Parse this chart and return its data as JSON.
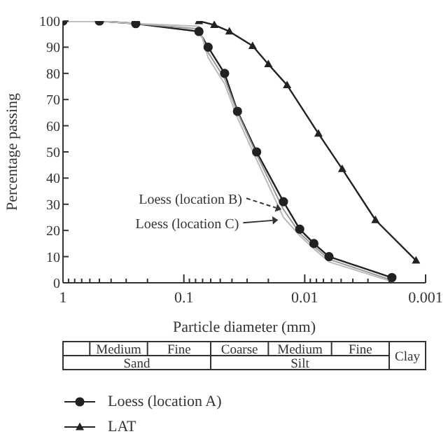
{
  "chart_data": {
    "type": "line",
    "xlabel": "Particle diameter (mm)",
    "ylabel": "Percentage passing",
    "log": "x",
    "xlim": [
      1,
      0.001
    ],
    "ylim": [
      0,
      100
    ],
    "xticks": [
      1,
      {
        "value": 0.9,
        "label": null
      },
      {
        "value": 0.8,
        "label": null
      },
      {
        "value": 0.7,
        "label": null
      },
      {
        "value": 0.6,
        "label": null
      },
      {
        "value": 0.5,
        "label": null
      },
      {
        "value": 0.4,
        "label": null
      },
      {
        "value": 0.3,
        "label": null
      },
      {
        "value": 0.2,
        "label": null
      },
      0.1,
      {
        "value": 0.09,
        "label": null
      },
      {
        "value": 0.08,
        "label": null
      },
      {
        "value": 0.07,
        "label": null
      },
      {
        "value": 0.06,
        "label": null
      },
      {
        "value": 0.05,
        "label": null
      },
      {
        "value": 0.04,
        "label": null
      },
      {
        "value": 0.03,
        "label": null
      },
      {
        "value": 0.02,
        "label": null
      },
      0.01,
      {
        "value": 0.009,
        "label": null
      },
      {
        "value": 0.008,
        "label": null
      },
      {
        "value": 0.007,
        "label": null
      },
      {
        "value": 0.006,
        "label": null
      },
      {
        "value": 0.005,
        "label": null
      },
      {
        "value": 0.004,
        "label": null
      },
      {
        "value": 0.003,
        "label": null
      },
      {
        "value": 0.002,
        "label": null
      },
      0.001
    ],
    "yticks": [
      0,
      10,
      20,
      30,
      40,
      50,
      60,
      70,
      80,
      90,
      100
    ],
    "legend": "bottom",
    "line_style": "solid",
    "series": [
      {
        "name": "Loess (location A)",
        "color": "#222222",
        "marker": "circle",
        "x": [
          1,
          0.5,
          0.25,
          0.075,
          0.063,
          0.046,
          0.036,
          0.025,
          0.015,
          0.011,
          0.0084,
          0.0063,
          0.0019
        ],
        "values": [
          100,
          100,
          99,
          96,
          90,
          80,
          65.5,
          50,
          31,
          20.5,
          15,
          10,
          2
        ]
      },
      {
        "color": "#999999",
        "marker": "none",
        "x": [
          1,
          0.5,
          0.25,
          0.075,
          0.063,
          0.046,
          0.036,
          0.025,
          0.015,
          0.011,
          0.0084,
          0.0063,
          0.0019
        ],
        "values": [
          100,
          100,
          99,
          97,
          88,
          78,
          65,
          49,
          28,
          19,
          14,
          9,
          1
        ]
      },
      {
        "color": "#bbbbbb",
        "marker": "none",
        "x": [
          1,
          0.5,
          0.25,
          0.075,
          0.063,
          0.046,
          0.036,
          0.025,
          0.015,
          0.011,
          0.0084,
          0.0063,
          0.0019
        ],
        "values": [
          100,
          100,
          99,
          98,
          86,
          76,
          63,
          47,
          25,
          18,
          13,
          8,
          0.5
        ]
      },
      {
        "name": "LAT",
        "color": "#222222",
        "marker": "triangle",
        "x": [
          0.075,
          0.056,
          0.042,
          0.027,
          0.02,
          0.014,
          0.0077,
          0.0049,
          0.0026,
          0.0012
        ],
        "values": [
          100,
          98.5,
          96,
          90.5,
          83.5,
          75.5,
          57,
          43.5,
          24,
          8.5
        ]
      }
    ],
    "annotations": [
      {
        "text": "Loess (location B)",
        "x": 0.0156,
        "y": 28
      },
      {
        "text": "Loess (location C)",
        "x": 0.0166,
        "y": 24
      },
      "Medium",
      "Fine",
      "Coarse",
      "Medium",
      "Fine",
      "Sand",
      "Silt",
      "Clay"
    ]
  }
}
